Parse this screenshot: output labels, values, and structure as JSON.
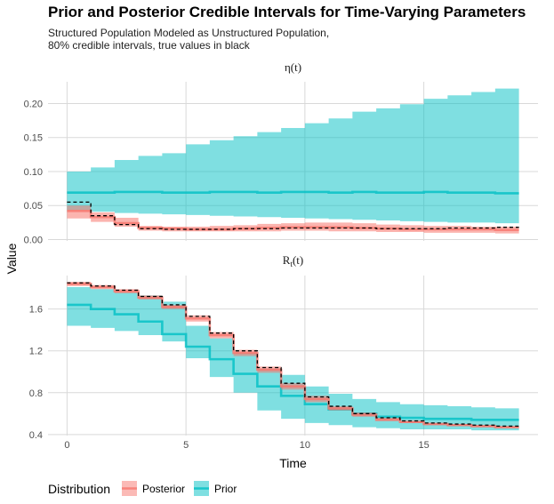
{
  "header": {
    "title": "Prior and Posterior Credible Intervals for Time-Varying Parameters",
    "subtitle_line1": "Structured Population Modeled as Unstructured Population,",
    "subtitle_line2": "80% credible intervals, true values in black"
  },
  "colors": {
    "posterior": "#F8766D",
    "prior": "#00BFC4",
    "truth": "#000000",
    "grid": "#d9d9d9"
  },
  "legend": {
    "title": "Distribution",
    "items": [
      "Posterior",
      "Prior"
    ]
  },
  "chart_data": {
    "type": "area",
    "xlabel": "Time",
    "ylabel": "Value",
    "xlim": [
      -0.8,
      19.8
    ],
    "x_ticks": [
      0,
      5,
      10,
      15
    ],
    "x_tick_labels": [
      "0",
      "5",
      "10",
      "15"
    ],
    "steps_x": [
      0,
      1,
      2,
      3,
      4,
      5,
      6,
      7,
      8,
      9,
      10,
      11,
      12,
      13,
      14,
      15,
      16,
      17,
      18,
      19
    ],
    "panels": [
      {
        "strip": "η(t)",
        "ylim": [
          -0.002,
          0.232
        ],
        "y_ticks": [
          0.0,
          0.05,
          0.1,
          0.15,
          0.2
        ],
        "y_tick_labels": [
          "0.00",
          "0.05",
          "0.10",
          "0.15",
          "0.20"
        ],
        "series": [
          {
            "name": "Prior",
            "median": [
              0.069,
              0.069,
              0.07,
              0.07,
              0.069,
              0.069,
              0.07,
              0.07,
              0.069,
              0.07,
              0.07,
              0.069,
              0.07,
              0.069,
              0.069,
              0.07,
              0.069,
              0.069,
              0.068
            ],
            "lower": [
              0.043,
              0.041,
              0.039,
              0.038,
              0.037,
              0.036,
              0.035,
              0.034,
              0.033,
              0.032,
              0.031,
              0.03,
              0.029,
              0.028,
              0.027,
              0.026,
              0.025,
              0.025,
              0.024
            ],
            "upper": [
              0.1,
              0.106,
              0.117,
              0.123,
              0.127,
              0.14,
              0.146,
              0.152,
              0.158,
              0.164,
              0.171,
              0.178,
              0.188,
              0.193,
              0.199,
              0.207,
              0.212,
              0.217,
              0.222
            ]
          },
          {
            "name": "Posterior",
            "median": [
              0.042,
              0.033,
              0.024,
              0.017,
              0.016,
              0.015,
              0.015,
              0.016,
              0.017,
              0.018,
              0.018,
              0.018,
              0.017,
              0.016,
              0.015,
              0.015,
              0.015,
              0.015,
              0.014
            ],
            "lower": [
              0.031,
              0.026,
              0.019,
              0.013,
              0.012,
              0.012,
              0.012,
              0.012,
              0.012,
              0.013,
              0.013,
              0.012,
              0.012,
              0.011,
              0.011,
              0.01,
              0.01,
              0.01,
              0.009
            ],
            "upper": [
              0.05,
              0.04,
              0.032,
              0.02,
              0.019,
              0.019,
              0.02,
              0.021,
              0.023,
              0.024,
              0.025,
              0.025,
              0.024,
              0.022,
              0.021,
              0.02,
              0.02,
              0.019,
              0.019
            ]
          }
        ],
        "truth": [
          0.055,
          0.035,
          0.022,
          0.016,
          0.015,
          0.015,
          0.015,
          0.016,
          0.016,
          0.017,
          0.017,
          0.017,
          0.017,
          0.016,
          0.016,
          0.016,
          0.017,
          0.017,
          0.018
        ]
      },
      {
        "strip": "Rt(t)",
        "strip_main": "R",
        "strip_sub": "t",
        "strip_tail": "(t)",
        "ylim": [
          0.39,
          1.92
        ],
        "y_ticks": [
          0.4,
          0.8,
          1.2,
          1.6
        ],
        "y_tick_labels": [
          "0.4",
          "0.8",
          "1.2",
          "1.6"
        ],
        "series": [
          {
            "name": "Prior",
            "median": [
              1.64,
              1.6,
              1.55,
              1.48,
              1.36,
              1.24,
              1.12,
              0.98,
              0.86,
              0.77,
              0.69,
              0.64,
              0.6,
              0.57,
              0.56,
              0.55,
              0.55,
              0.54,
              0.54
            ],
            "lower": [
              1.44,
              1.42,
              1.39,
              1.35,
              1.29,
              1.13,
              0.95,
              0.8,
              0.63,
              0.55,
              0.51,
              0.49,
              0.47,
              0.46,
              0.45,
              0.45,
              0.45,
              0.44,
              0.44
            ],
            "upper": [
              1.81,
              1.79,
              1.76,
              1.73,
              1.67,
              1.44,
              1.32,
              1.18,
              1.03,
              0.97,
              0.86,
              0.79,
              0.74,
              0.71,
              0.69,
              0.68,
              0.67,
              0.66,
              0.65
            ]
          },
          {
            "name": "Posterior",
            "median": [
              1.84,
              1.81,
              1.77,
              1.71,
              1.62,
              1.51,
              1.35,
              1.18,
              1.02,
              0.86,
              0.74,
              0.65,
              0.59,
              0.54,
              0.52,
              0.5,
              0.49,
              0.48,
              0.47
            ],
            "lower": [
              1.82,
              1.79,
              1.75,
              1.69,
              1.6,
              1.48,
              1.32,
              1.15,
              0.99,
              0.83,
              0.71,
              0.63,
              0.57,
              0.53,
              0.51,
              0.49,
              0.48,
              0.47,
              0.46
            ],
            "upper": [
              1.86,
              1.83,
              1.79,
              1.73,
              1.64,
              1.54,
              1.38,
              1.21,
              1.05,
              0.89,
              0.77,
              0.67,
              0.61,
              0.56,
              0.53,
              0.51,
              0.5,
              0.49,
              0.48
            ]
          }
        ],
        "truth": [
          1.85,
          1.82,
          1.78,
          1.72,
          1.64,
          1.53,
          1.37,
          1.2,
          1.04,
          0.89,
          0.76,
          0.67,
          0.6,
          0.56,
          0.53,
          0.51,
          0.5,
          0.49,
          0.48
        ]
      }
    ]
  }
}
